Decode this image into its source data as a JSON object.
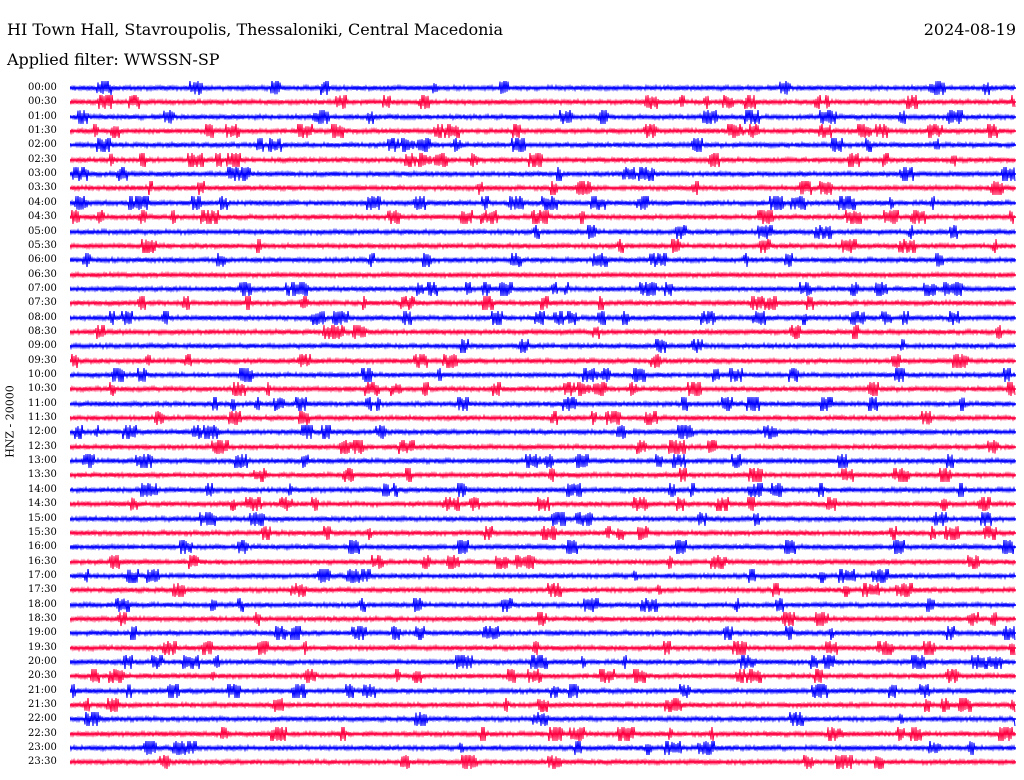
{
  "header": {
    "station": "HI Town Hall, Stavroupolis, Thessaloniki, Central Macedonia",
    "date": "2024-08-19",
    "filter": "Applied filter: WWSSN-SP"
  },
  "axis_label": "HNZ - 20000",
  "colors": {
    "even": "#0000ff",
    "odd": "#ff0040"
  },
  "rows": [
    {
      "time": "00:00"
    },
    {
      "time": "00:30"
    },
    {
      "time": "01:00"
    },
    {
      "time": "01:30"
    },
    {
      "time": "02:00"
    },
    {
      "time": "02:30"
    },
    {
      "time": "03:00"
    },
    {
      "time": "03:30"
    },
    {
      "time": "04:00"
    },
    {
      "time": "04:30"
    },
    {
      "time": "05:00"
    },
    {
      "time": "05:30"
    },
    {
      "time": "06:00"
    },
    {
      "time": "06:30"
    },
    {
      "time": "07:00"
    },
    {
      "time": "07:30"
    },
    {
      "time": "08:00"
    },
    {
      "time": "08:30"
    },
    {
      "time": "09:00"
    },
    {
      "time": "09:30"
    },
    {
      "time": "10:00"
    },
    {
      "time": "10:30"
    },
    {
      "time": "11:00"
    },
    {
      "time": "11:30"
    },
    {
      "time": "12:00"
    },
    {
      "time": "12:30"
    },
    {
      "time": "13:00"
    },
    {
      "time": "13:30"
    },
    {
      "time": "14:00"
    },
    {
      "time": "14:30"
    },
    {
      "time": "15:00"
    },
    {
      "time": "15:30"
    },
    {
      "time": "16:00"
    },
    {
      "time": "16:30"
    },
    {
      "time": "17:00"
    },
    {
      "time": "17:30"
    },
    {
      "time": "18:00"
    },
    {
      "time": "18:30"
    },
    {
      "time": "19:00"
    },
    {
      "time": "19:30"
    },
    {
      "time": "20:00"
    },
    {
      "time": "20:30"
    },
    {
      "time": "21:00"
    },
    {
      "time": "21:30"
    },
    {
      "time": "22:00"
    },
    {
      "time": "22:30"
    },
    {
      "time": "23:00"
    },
    {
      "time": "23:30"
    }
  ]
}
